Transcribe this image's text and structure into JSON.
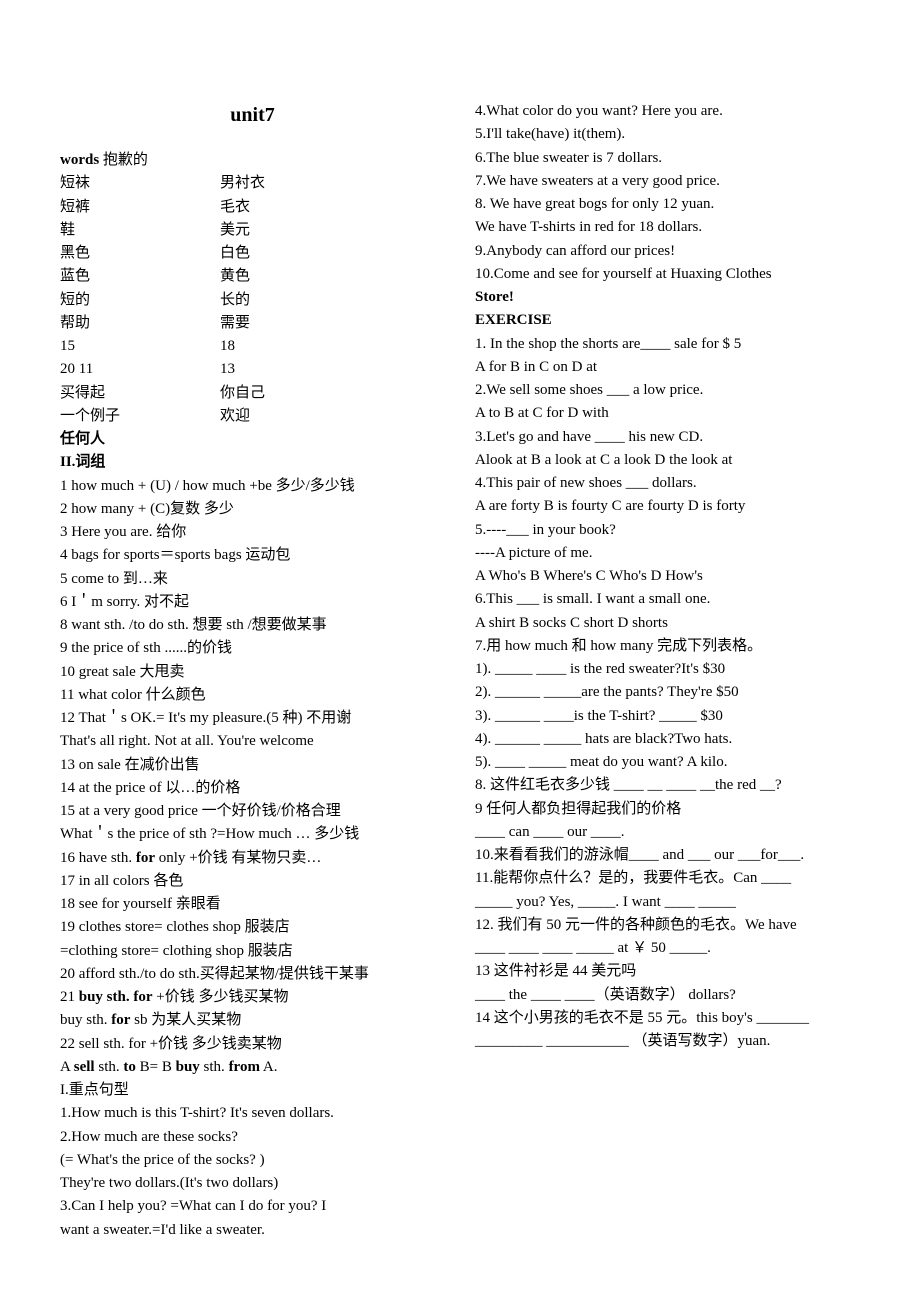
{
  "title": "unit7",
  "words_label": "words",
  "words_rows": [
    [
      "words        抱歉的",
      ""
    ],
    [
      "短袜",
      "男衬衣"
    ],
    [
      "短裤",
      "毛衣"
    ],
    [
      "鞋",
      "美元"
    ],
    [
      "黑色",
      "白色"
    ],
    [
      "蓝色",
      "黄色"
    ],
    [
      "短的",
      "长的"
    ],
    [
      "帮助",
      "需要"
    ],
    [
      "15",
      "18"
    ],
    [
      "20            11",
      "13"
    ],
    [
      "买得起",
      "你自己"
    ],
    [
      "一个例子",
      "欢迎"
    ],
    [
      "任何人",
      ""
    ]
  ],
  "section2_heading": "II.词组",
  "phrases": [
    "1 how much + (U) / how much +be   多少/多少钱",
    "2 how many + (C)复数                   多少",
    "3 Here you are.                              给你",
    "4 bags for sports＝sports bags        运动包",
    "5 come to                                  到…来",
    "6 I＇m sorry.                               对不起",
    "8 want sth. /to do sth.       想要 sth /想要做某事",
    "9 the price of sth           ......的价钱",
    "10 great sale                         大甩卖",
    "11 what color                        什么颜色",
    "12 That＇s OK.= It's my pleasure.(5 种)     不用谢",
    "That's all right.   Not at all.   You're welcome",
    "13 on sale                在减价出售",
    "14 at the price of             以…的价格",
    "15 at a very good price    一个好价钱/价格合理",
    "   What＇s the price of sth ?=How much  … 多少钱"
  ],
  "phrase16_pre": "16 have sth. ",
  "phrase16_bold": "for",
  "phrase16_post": " only +价钱       有某物只卖…",
  "phrases2": [
    "17 in all colors                   各色",
    "18 see for yourself                亲眼看",
    "19 clothes store= clothes shop        服装店",
    "=clothing store= clothing shop        服装店",
    "20 afford sth./to do sth.买得起某物/提供钱干某事"
  ],
  "phrase21_a": "21 ",
  "phrase21_b": "buy sth. for",
  "phrase21_c": " +价钱           多少钱买某物",
  "phrase21d": "   buy sth. ",
  "phrase21d_bold": "for",
  "phrase21d_post": " sb               为某人买某物",
  "phrase22": "22 sell sth. for +价钱           多少钱卖某物",
  "phrase_ab_a": "   A ",
  "phrase_ab_sell": "sell",
  "phrase_ab_b": " sth. ",
  "phrase_ab_to": "to",
  "phrase_ab_c": "   B= B ",
  "phrase_ab_buy": "buy",
  "phrase_ab_d": " sth. ",
  "phrase_ab_from": "from",
  "phrase_ab_e": " A.",
  "sentence_heading": "I.重点句型",
  "sentences": [
    "1.How much is this T-shirt?   It's seven dollars.",
    "2.How much are these socks?",
    "(= What's the price of the socks? )",
    "  They're two dollars.(It's two dollars)",
    "3.Can I help you? =What can I do for you?            I",
    "want a sweater.=I'd like a sweater.",
    "4.What color do you want?       Here you are.",
    "5.I'll take(have) it(them).",
    "6.The blue sweater is 7 dollars.",
    "7.We have sweaters at a very good price.",
    "8. We have great bogs for only 12 yuan.",
    "  We have T-shirts in red for 18 dollars.",
    "9.Anybody can afford our prices!"
  ],
  "sentence10a": "10.Come  and  see  for  yourself  at  Huaxing  Clothes",
  "sentence10b": "Store!",
  "exercise_heading": "EXERCISE",
  "exercises": [
    "1. In the shop the shorts are____ sale for $ 5",
    "   A for   B in   C on   D at",
    "2.We sell some shoes ___ a low price.",
    "  A to   B at   C for   D with",
    "3.Let's go and have ____ his new CD.",
    "  Alook at   B a look at   C a look   D the look at",
    "4.This pair of new shoes ___ dollars.",
    "A are forty   B is fourty   C are fourty   D is forty",
    "5.----___ in your book?",
    "----A picture of me.",
    "  A Who's   B Where's   C Who's   D How's",
    "6.This ___ is small. I want a small one.",
    "  A shirt   B socks   C short   D shorts",
    "7.用 how much 和 how many 完成下列表格。",
    "1). _____  ____  is the red sweater?It's $30",
    "2). ______  _____are the pants? They're $50",
    "3). ______  ____is the T-shirt? _____ $30",
    "4). ______  _____ hats are black?Two hats.",
    "5). ____  _____ meat do you want? A kilo.",
    "8. 这件红毛衣多少钱 ____  __ ____  __the red __?",
    "9 任何人都负担得起我们的价格",
    "____   can   ____   our  ____.",
    "10.来看看我们的游泳帽____ and ___ our ___for___.",
    "11.能帮你点什么？是的，我要件毛衣。Can ____",
    "_____  you? Yes, _____. I want ____  _____",
    "12. 我们有 50 元一件的各种颜色的毛衣。We have",
    "____   ____  ____   _____  at  ￥  50   _____.",
    "13 这件衬衫是 44 美元吗",
    "____ the  ____   ____（英语数字） dollars?",
    "14 这个小男孩的毛衣不是 55 元。this boy's  _______",
    "_________    ___________ （英语写数字）yuan."
  ]
}
